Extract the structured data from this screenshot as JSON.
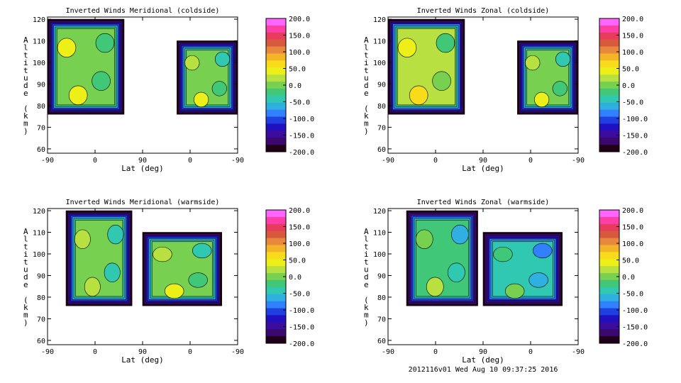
{
  "footer": "2012116v01 Wed Aug 10 09:37:25 2016",
  "colorbar": {
    "ticks": [
      "200.0",
      "150.0",
      "100.0",
      "50.0",
      "0.0",
      "-50.0",
      "-100.0",
      "-150.0",
      "-200.0"
    ],
    "colors": [
      "#ff66ff",
      "#ff3fa8",
      "#e83c5c",
      "#d85a3c",
      "#e8883c",
      "#f4b428",
      "#f8dc1c",
      "#ecf018",
      "#b8e040",
      "#78d050",
      "#40c878",
      "#30c8b0",
      "#30b0e0",
      "#3080ff",
      "#2040e0",
      "#2010c0",
      "#3c0c9c",
      "#3c0870",
      "#200018"
    ]
  },
  "chart_data": [
    {
      "type": "heatmap",
      "title": "Inverted Winds Meridional (coldside)",
      "xlabel": "Lat (deg)",
      "ylabel": "Altitude (km)",
      "x_ticks": [
        "-90",
        "0",
        "90",
        "0",
        "-90"
      ],
      "y_ticks": [
        "60",
        "70",
        "80",
        "90",
        "100",
        "110",
        "120"
      ],
      "ylim": [
        58,
        121
      ],
      "colorbar_range": [
        -200,
        200
      ],
      "left_block": {
        "lat_span": [
          -90,
          55
        ],
        "alt_span": [
          76,
          120
        ],
        "mean": 10
      },
      "right_block": {
        "lat_span": [
          25,
          -90
        ],
        "alt_span": [
          76,
          110
        ],
        "mean": 0
      }
    },
    {
      "type": "heatmap",
      "title": "Inverted Winds Zonal (coldside)",
      "xlabel": "Lat (deg)",
      "ylabel": "Altitude (km)",
      "x_ticks": [
        "-90",
        "0",
        "90",
        "0",
        "-90"
      ],
      "y_ticks": [
        "60",
        "70",
        "80",
        "90",
        "100",
        "110",
        "120"
      ],
      "ylim": [
        58,
        121
      ],
      "colorbar_range": [
        -200,
        200
      ],
      "left_block": {
        "lat_span": [
          -90,
          55
        ],
        "alt_span": [
          76,
          120
        ],
        "mean": 20
      },
      "right_block": {
        "lat_span": [
          25,
          -90
        ],
        "alt_span": [
          76,
          110
        ],
        "mean": 0
      }
    },
    {
      "type": "heatmap",
      "title": "Inverted Winds Meridional (warmside)",
      "xlabel": "Lat (deg)",
      "ylabel": "Altitude (km)",
      "x_ticks": [
        "-90",
        "0",
        "90",
        "0",
        "-90"
      ],
      "y_ticks": [
        "60",
        "70",
        "80",
        "90",
        "100",
        "110",
        "120"
      ],
      "ylim": [
        58,
        121
      ],
      "colorbar_range": [
        -200,
        200
      ],
      "left_block": {
        "lat_span": [
          -55,
          70
        ],
        "alt_span": [
          76,
          120
        ],
        "mean": -10
      },
      "right_block": {
        "lat_span": [
          90,
          -60
        ],
        "alt_span": [
          76,
          110
        ],
        "mean": 0
      }
    },
    {
      "type": "heatmap",
      "title": "Inverted Winds Zonal (warmside)",
      "xlabel": "Lat (deg)",
      "ylabel": "Altitude (km)",
      "x_ticks": [
        "-90",
        "0",
        "90",
        "0",
        "-90"
      ],
      "y_ticks": [
        "60",
        "70",
        "80",
        "90",
        "100",
        "110",
        "120"
      ],
      "ylim": [
        58,
        121
      ],
      "colorbar_range": [
        -200,
        200
      ],
      "left_block": {
        "lat_span": [
          -55,
          80
        ],
        "alt_span": [
          76,
          120
        ],
        "mean": -20
      },
      "right_block": {
        "lat_span": [
          90,
          -60
        ],
        "alt_span": [
          76,
          110
        ],
        "mean": -40
      }
    }
  ]
}
